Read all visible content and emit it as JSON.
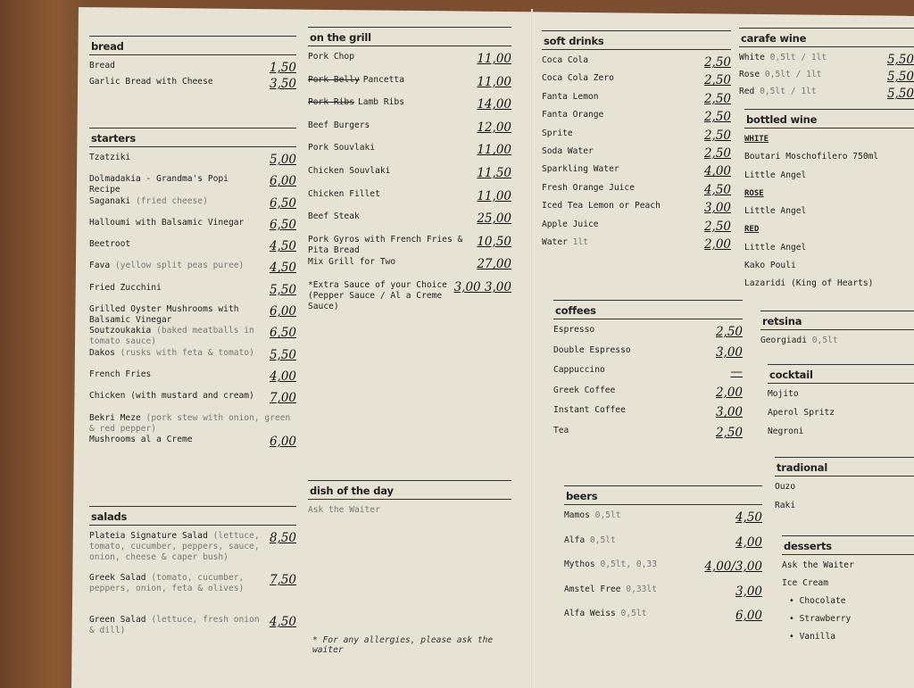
{
  "sections": [
    {
      "title": "bread",
      "items": [
        {
          "name": "Bread",
          "price": "1,50"
        },
        {
          "name": "Garlic Bread with Cheese",
          "price": "3,50"
        }
      ]
    },
    {
      "title": "starters",
      "items": [
        {
          "name": "Tzatziki",
          "price": "5,00"
        },
        {
          "name": "Dolmadakia - Grandma's Popi Recipe",
          "price": "6,00"
        },
        {
          "name": "Saganaki",
          "desc": "(fried cheese)",
          "price": "6,50"
        },
        {
          "name": "Halloumi with Balsamic Vinegar",
          "price": "6,50"
        },
        {
          "name": "Beetroot",
          "price": "4,50"
        },
        {
          "name": "Fava",
          "desc": "(yellow split peas puree)",
          "price": "4,50"
        },
        {
          "name": "Fried Zucchini",
          "price": "5,50"
        },
        {
          "name": "Grilled Oyster Mushrooms with Balsamic Vinegar",
          "price": "6,00"
        },
        {
          "name": "Soutzoukakia",
          "desc": "(baked meatballs in tomato sauce)",
          "price": "6,50"
        },
        {
          "name": "Dakos",
          "desc": "(rusks with feta & tomato)",
          "price": "5,50"
        },
        {
          "name": "French Fries",
          "price": "4,00"
        },
        {
          "name": "Chicken (with mustard and cream)",
          "price": "7,00"
        },
        {
          "name": "Bekri Meze",
          "desc": "(pork stew with onion, green & red pepper)"
        },
        {
          "name": "Mushrooms al a Creme",
          "price": "6,00"
        }
      ]
    },
    {
      "title": "salads",
      "items": [
        {
          "name": "Plateia Signature Salad",
          "desc": "(lettuce, tomato, cucumber, peppers, sauce, onion, cheese & caper bush)",
          "price": "8,50"
        },
        {
          "name": "Greek Salad",
          "desc": "(tomato, cucumber, peppers, onion, feta & olives)",
          "price": "7,50"
        },
        {
          "name": "Green Salad",
          "desc": "(lettuce, fresh onion & dill)",
          "price": "4,50"
        }
      ]
    },
    {
      "title": "on the grill",
      "items": [
        {
          "name": "Pork Chop",
          "price": "11,00"
        },
        {
          "struck": "Pork Belly",
          "name": "Pancetta",
          "price": "11,00"
        },
        {
          "struck": "Pork Ribs",
          "name": "Lamb Ribs",
          "price": "14,00"
        },
        {
          "name": "Beef Burgers",
          "price": "12,00"
        },
        {
          "name": "Pork Souvlaki",
          "price": "11,00"
        },
        {
          "name": "Chicken Souvlaki",
          "price": "11,50"
        },
        {
          "name": "Chicken Fillet",
          "price": "11,00"
        },
        {
          "name": "Beef Steak",
          "price": "25,00"
        },
        {
          "name": "Pork Gyros with French Fries & Pita Bread",
          "price": "10,50"
        },
        {
          "name": "Mix Grill for Two",
          "price": "27,00"
        },
        {
          "name": "*Extra Sauce of your Choice (Pepper Sauce / Al a Creme Sauce)",
          "price": "3,00 3,00"
        }
      ]
    },
    {
      "title": "dish of the day",
      "items": [
        {
          "desc": "Ask the Waiter"
        }
      ]
    },
    {
      "title": "soft drinks",
      "items": [
        {
          "name": "Coca Cola",
          "price": "2,50"
        },
        {
          "name": "Coca Cola Zero",
          "price": "2,50"
        },
        {
          "name": "Fanta Lemon",
          "price": "2,50"
        },
        {
          "name": "Fanta Orange",
          "price": "2,50"
        },
        {
          "name": "Sprite",
          "price": "2,50"
        },
        {
          "name": "Soda Water",
          "price": "2,50"
        },
        {
          "name": "Sparkling Water",
          "price": "4,00"
        },
        {
          "name": "Fresh Orange Juice",
          "price": "4,50"
        },
        {
          "name": "Iced Tea Lemon or Peach",
          "price": "3,00"
        },
        {
          "name": "Apple Juice",
          "price": "2,50"
        },
        {
          "name": "Water",
          "desc": "1lt",
          "price": "2,00"
        }
      ]
    },
    {
      "title": "coffees",
      "items": [
        {
          "name": "Espresso",
          "price": "2,50"
        },
        {
          "name": "Double Espresso",
          "price": "3,00"
        },
        {
          "name": "Cappuccino",
          "price": "—"
        },
        {
          "name": "Greek Coffee",
          "price": "2,00"
        },
        {
          "name": "Instant Coffee",
          "price": "3,00"
        },
        {
          "name": "Tea",
          "price": "2,50"
        }
      ]
    },
    {
      "title": "beers",
      "items": [
        {
          "name": "Mamos",
          "desc": "0,5lt",
          "price": "4,50"
        },
        {
          "name": "Alfa",
          "desc": "0,5lt",
          "price": "4,00"
        },
        {
          "name": "Mythos",
          "desc": "0,5lt, 0,33",
          "price": "4,00/3,00"
        },
        {
          "name": "Amstel Free",
          "desc": "0,33lt",
          "price": "3,00"
        },
        {
          "name": "Alfa Weiss",
          "desc": "0,5lt",
          "price": "6,00"
        }
      ]
    },
    {
      "title": "carafe wine",
      "items": [
        {
          "name": "White",
          "desc": "0,5lt / 1lt",
          "price": "5,50"
        },
        {
          "name": "Rose",
          "desc": "0,5lt / 1lt",
          "price": "5,50"
        },
        {
          "name": "Red",
          "desc": "0,5lt / 1lt",
          "price": "5,50"
        }
      ]
    },
    {
      "title": "bottled wine",
      "items": [
        {
          "heading": "WHITE"
        },
        {
          "name": "Boutari Moschofilero 750ml"
        },
        {
          "name": "Little Angel"
        },
        {
          "heading": "ROSE"
        },
        {
          "name": "Little Angel"
        },
        {
          "heading": "RED"
        },
        {
          "name": "Little Angel"
        },
        {
          "name": "Kako Pouli"
        },
        {
          "name": "Lazaridi (King of Hearts)"
        }
      ]
    },
    {
      "title": "retsina",
      "items": [
        {
          "name": "Georgiadi",
          "desc": "0,5lt"
        }
      ]
    },
    {
      "title": "cocktail",
      "items": [
        {
          "name": "Mojito"
        },
        {
          "name": "Aperol Spritz"
        },
        {
          "name": "Negroni"
        }
      ]
    },
    {
      "title": "tradional",
      "items": [
        {
          "name": "Ouzo"
        },
        {
          "name": "Raki"
        }
      ]
    },
    {
      "title": "desserts",
      "items": [
        {
          "name": "Ask the Waiter"
        },
        {
          "name": "Ice Cream"
        },
        {
          "bullet": "Chocolate"
        },
        {
          "bullet": "Strawberry"
        },
        {
          "bullet": "Vanilla"
        }
      ]
    }
  ],
  "footnote": "* For any allergies, please ask the waiter"
}
